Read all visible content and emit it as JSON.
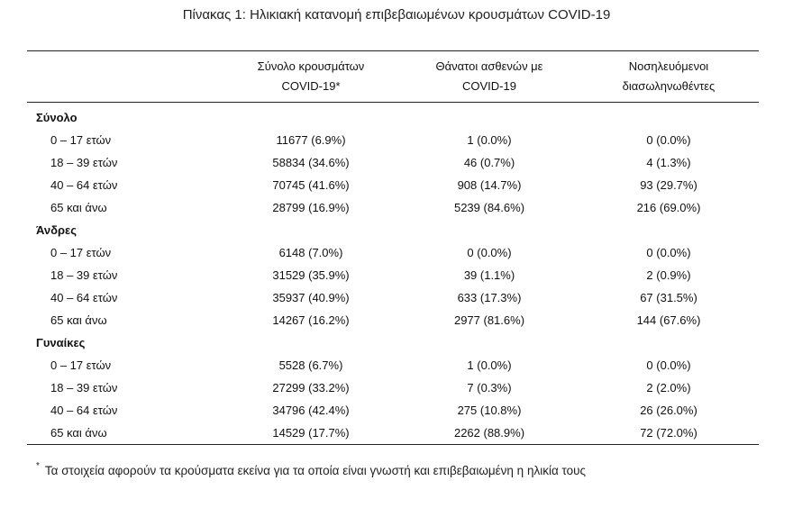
{
  "caption": "Πίνακας 1: Ηλικιακή κατανομή επιβεβαιωμένων κρουσμάτων COVID-19",
  "headers": {
    "col1_line1": "Σύνολο κρουσμάτων",
    "col1_line2": "COVID-19*",
    "col2_line1": "Θάνατοι ασθενών με",
    "col2_line2": "COVID-19",
    "col3_line1": "Νοσηλευόμενοι",
    "col3_line2": "διασωληνωθέντες"
  },
  "groups": [
    {
      "label": "Σύνολο",
      "rows": [
        {
          "age": "0 – 17 ετών",
          "cases": "11677 (6.9%)",
          "deaths": "1 (0.0%)",
          "intubated": "0 (0.0%)"
        },
        {
          "age": "18 – 39 ετών",
          "cases": "58834 (34.6%)",
          "deaths": "46 (0.7%)",
          "intubated": "4 (1.3%)"
        },
        {
          "age": "40 – 64 ετών",
          "cases": "70745 (41.6%)",
          "deaths": "908 (14.7%)",
          "intubated": "93 (29.7%)"
        },
        {
          "age": "65 και άνω",
          "cases": "28799 (16.9%)",
          "deaths": "5239 (84.6%)",
          "intubated": "216 (69.0%)"
        }
      ]
    },
    {
      "label": "Άνδρες",
      "rows": [
        {
          "age": "0 – 17 ετών",
          "cases": "6148 (7.0%)",
          "deaths": "0 (0.0%)",
          "intubated": "0 (0.0%)"
        },
        {
          "age": "18 – 39 ετών",
          "cases": "31529 (35.9%)",
          "deaths": "39 (1.1%)",
          "intubated": "2 (0.9%)"
        },
        {
          "age": "40 – 64 ετών",
          "cases": "35937 (40.9%)",
          "deaths": "633 (17.3%)",
          "intubated": "67 (31.5%)"
        },
        {
          "age": "65 και άνω",
          "cases": "14267 (16.2%)",
          "deaths": "2977 (81.6%)",
          "intubated": "144 (67.6%)"
        }
      ]
    },
    {
      "label": "Γυναίκες",
      "rows": [
        {
          "age": "0 – 17 ετών",
          "cases": "5528 (6.7%)",
          "deaths": "1 (0.0%)",
          "intubated": "0 (0.0%)"
        },
        {
          "age": "18 – 39 ετών",
          "cases": "27299 (33.2%)",
          "deaths": "7 (0.3%)",
          "intubated": "2 (2.0%)"
        },
        {
          "age": "40 – 64 ετών",
          "cases": "34796 (42.4%)",
          "deaths": "275 (10.8%)",
          "intubated": "26 (26.0%)"
        },
        {
          "age": "65 και άνω",
          "cases": "14529 (17.7%)",
          "deaths": "2262 (88.9%)",
          "intubated": "72 (72.0%)"
        }
      ]
    }
  ],
  "footnote": {
    "marker": "*",
    "text": "Τα στοιχεία αφορούν τα κρούσματα εκείνα για τα οποία είναι γνωστή και επιβεβαιωμένη η ηλικία τους"
  }
}
